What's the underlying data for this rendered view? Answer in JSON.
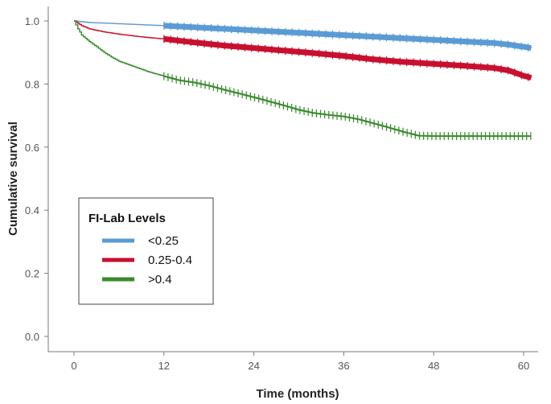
{
  "chart_data": {
    "type": "line",
    "subtype": "kaplan-meier",
    "title": "",
    "xlabel": "Time (months)",
    "ylabel": "Cumulative survival",
    "xlim": [
      0,
      62
    ],
    "ylim": [
      -0.03,
      1.03
    ],
    "xticks": [
      0,
      12,
      24,
      36,
      48,
      60
    ],
    "yticks": [
      0.0,
      0.2,
      0.4,
      0.6,
      0.8,
      1.0
    ],
    "xtick_labels": [
      "0",
      "12",
      "24",
      "36",
      "48",
      "60"
    ],
    "ytick_labels": [
      "0.0",
      "0.2",
      "0.4",
      "0.6",
      "0.8",
      "1.0"
    ],
    "grid": false,
    "legend": {
      "title": "FI-Lab Levels",
      "placement": "lower-left"
    },
    "series": [
      {
        "name": "<0.25",
        "color": "#5b9bd5",
        "x": [
          0,
          2,
          4,
          6,
          8,
          10,
          12,
          16,
          20,
          24,
          28,
          32,
          36,
          40,
          44,
          48,
          52,
          56,
          58,
          60,
          61
        ],
        "y": [
          1.0,
          0.995,
          0.993,
          0.991,
          0.989,
          0.987,
          0.985,
          0.98,
          0.975,
          0.97,
          0.965,
          0.96,
          0.955,
          0.95,
          0.945,
          0.94,
          0.935,
          0.93,
          0.925,
          0.918,
          0.914
        ],
        "censored_from": 12
      },
      {
        "name": "0.25-0.4",
        "color": "#c8102e",
        "x": [
          0,
          1,
          2,
          4,
          6,
          8,
          10,
          12,
          16,
          20,
          24,
          28,
          32,
          36,
          40,
          44,
          48,
          52,
          56,
          58,
          60,
          61
        ],
        "y": [
          1.0,
          0.985,
          0.975,
          0.965,
          0.958,
          0.952,
          0.947,
          0.943,
          0.932,
          0.922,
          0.914,
          0.906,
          0.898,
          0.889,
          0.878,
          0.87,
          0.864,
          0.858,
          0.851,
          0.843,
          0.826,
          0.82
        ],
        "censored_from": 12
      },
      {
        "name": ">0.4",
        "color": "#3a8a2e",
        "x": [
          0,
          0.5,
          1,
          2,
          3,
          4,
          5,
          6,
          8,
          10,
          12,
          14,
          16,
          18,
          20,
          22,
          24,
          26,
          28,
          30,
          32,
          34,
          36,
          38,
          40,
          42,
          44,
          46,
          48,
          52,
          56,
          60,
          61
        ],
        "y": [
          1.0,
          0.975,
          0.955,
          0.935,
          0.918,
          0.9,
          0.885,
          0.872,
          0.855,
          0.838,
          0.825,
          0.812,
          0.805,
          0.795,
          0.782,
          0.77,
          0.758,
          0.745,
          0.732,
          0.718,
          0.708,
          0.702,
          0.697,
          0.688,
          0.675,
          0.662,
          0.648,
          0.636,
          0.635,
          0.635,
          0.635,
          0.635,
          0.635
        ],
        "censored_from": 12
      }
    ]
  }
}
